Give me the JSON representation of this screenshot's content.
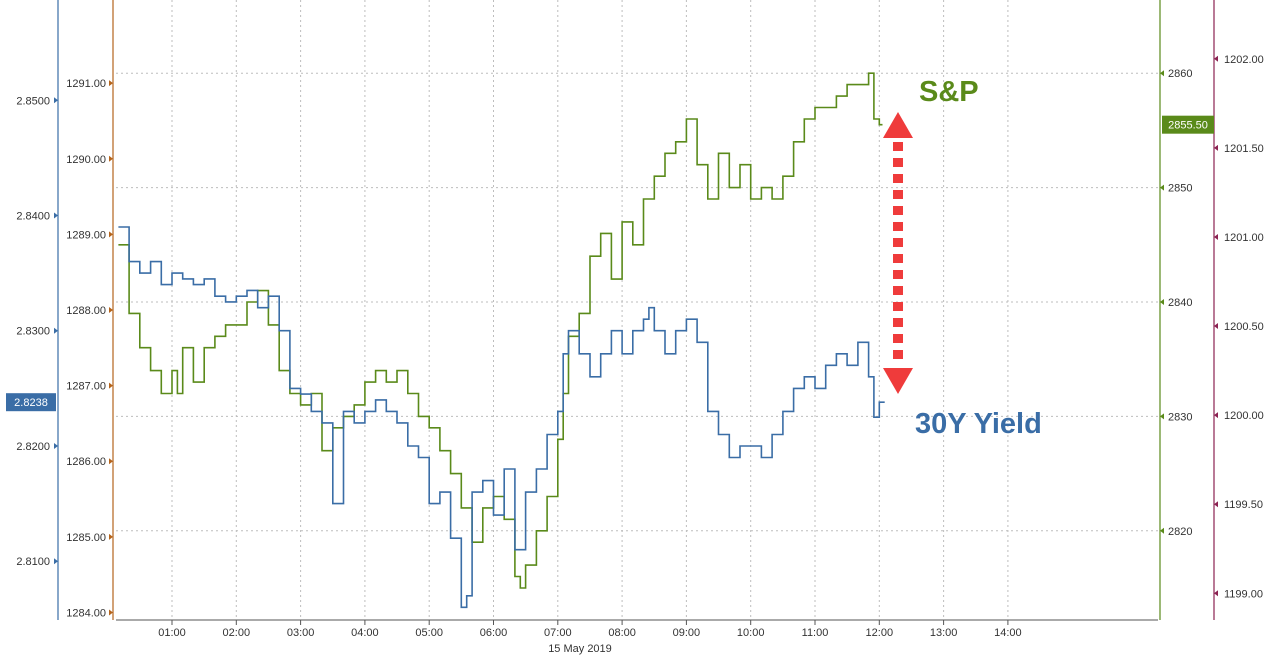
{
  "chart_data": {
    "type": "line",
    "date_label": "15 May 2019",
    "x_ticks": [
      "01:00",
      "02:00",
      "03:00",
      "04:00",
      "05:00",
      "06:00",
      "07:00",
      "08:00",
      "09:00",
      "10:00",
      "11:00",
      "12:00",
      "13:00",
      "14:00"
    ],
    "axes": {
      "yield_axis": {
        "ticks": [
          "2.8100",
          "2.8200",
          "2.8300",
          "2.8400",
          "2.8500"
        ],
        "range": [
          2.8049,
          2.8587
        ],
        "current_label": "2.8238",
        "color": "#3a6da6"
      },
      "left_inner": {
        "ticks": [
          "1284.00",
          "1285.00",
          "1286.00",
          "1287.00",
          "1288.00",
          "1289.00",
          "1290.00",
          "1291.00"
        ],
        "range": [
          1283.9,
          1292.1
        ],
        "color": "#b5651d"
      },
      "spx_axis": {
        "ticks": [
          "2820",
          "2830",
          "2840",
          "2850",
          "2860"
        ],
        "range": [
          2812.2,
          2866.4
        ],
        "current_label": "2855.50",
        "color": "#5a8a1a"
      },
      "right_outer": {
        "ticks": [
          "1199.00",
          "1199.50",
          "1200.00",
          "1200.50",
          "1201.00",
          "1201.50",
          "1202.00"
        ],
        "range": [
          1198.85,
          1202.33
        ],
        "color": "#8b2252"
      }
    },
    "series": [
      {
        "name": "S&P",
        "color": "#5a8a1a",
        "axis": "spx_axis",
        "x": [
          "00:10",
          "00:20",
          "00:30",
          "00:40",
          "00:50",
          "01:00",
          "01:05",
          "01:10",
          "01:20",
          "01:30",
          "01:40",
          "01:50",
          "02:00",
          "02:10",
          "02:20",
          "02:30",
          "02:40",
          "02:50",
          "03:00",
          "03:10",
          "03:20",
          "03:30",
          "03:40",
          "03:50",
          "04:00",
          "04:10",
          "04:20",
          "04:30",
          "04:40",
          "04:50",
          "05:00",
          "05:10",
          "05:20",
          "05:30",
          "05:40",
          "05:50",
          "06:00",
          "06:10",
          "06:20",
          "06:25",
          "06:30",
          "06:40",
          "06:50",
          "07:00",
          "07:05",
          "07:10",
          "07:20",
          "07:30",
          "07:40",
          "07:50",
          "08:00",
          "08:10",
          "08:20",
          "08:30",
          "08:40",
          "08:50",
          "09:00",
          "09:10",
          "09:20",
          "09:30",
          "09:40",
          "09:50",
          "10:00",
          "10:10",
          "10:20",
          "10:30",
          "10:40",
          "10:50",
          "11:00",
          "11:10",
          "11:20",
          "11:30",
          "11:40",
          "11:50",
          "11:55",
          "12:00",
          "12:03"
        ],
        "values": [
          2845,
          2839,
          2836,
          2834,
          2832,
          2834,
          2832,
          2836,
          2833,
          2836,
          2837,
          2838,
          2838,
          2840,
          2841,
          2838,
          2834,
          2832,
          2831,
          2832,
          2827,
          2829,
          2830,
          2831,
          2833,
          2834,
          2833,
          2834,
          2832,
          2830,
          2829,
          2827,
          2825,
          2822,
          2819,
          2822,
          2823,
          2821,
          2816,
          2815,
          2817,
          2820,
          2823,
          2828,
          2832,
          2837,
          2839,
          2844,
          2846,
          2842,
          2847,
          2845,
          2849,
          2851,
          2853,
          2854,
          2856,
          2852,
          2849,
          2853,
          2850,
          2852,
          2849,
          2850,
          2849,
          2851,
          2854,
          2856,
          2857,
          2857,
          2858,
          2859,
          2859,
          2860,
          2856,
          2855.5,
          2855.5
        ]
      },
      {
        "name": "30Y Yield",
        "color": "#3a6da6",
        "axis": "yield_axis",
        "x": [
          "00:10",
          "00:20",
          "00:30",
          "00:40",
          "00:50",
          "01:00",
          "01:10",
          "01:20",
          "01:30",
          "01:40",
          "01:50",
          "02:00",
          "02:10",
          "02:20",
          "02:30",
          "02:40",
          "02:50",
          "03:00",
          "03:10",
          "03:20",
          "03:30",
          "03:40",
          "03:50",
          "04:00",
          "04:10",
          "04:20",
          "04:30",
          "04:40",
          "04:50",
          "05:00",
          "05:10",
          "05:20",
          "05:30",
          "05:35",
          "05:40",
          "05:50",
          "06:00",
          "06:10",
          "06:20",
          "06:30",
          "06:40",
          "06:50",
          "07:00",
          "07:05",
          "07:10",
          "07:20",
          "07:30",
          "07:40",
          "07:50",
          "08:00",
          "08:10",
          "08:20",
          "08:25",
          "08:30",
          "08:40",
          "08:50",
          "09:00",
          "09:10",
          "09:20",
          "09:30",
          "09:40",
          "09:50",
          "10:00",
          "10:10",
          "10:20",
          "10:30",
          "10:40",
          "10:50",
          "11:00",
          "11:10",
          "11:20",
          "11:30",
          "11:40",
          "11:50",
          "11:55",
          "12:00",
          "12:05"
        ],
        "values": [
          2.839,
          2.836,
          2.835,
          2.836,
          2.834,
          2.835,
          2.8345,
          2.834,
          2.8345,
          2.833,
          2.8325,
          2.833,
          2.8335,
          2.832,
          2.833,
          2.83,
          2.825,
          2.8245,
          2.823,
          2.822,
          2.815,
          2.823,
          2.822,
          2.823,
          2.824,
          2.823,
          2.822,
          2.82,
          2.819,
          2.815,
          2.816,
          2.812,
          2.806,
          2.807,
          2.816,
          2.817,
          2.814,
          2.818,
          2.811,
          2.816,
          2.818,
          2.821,
          2.823,
          2.828,
          2.83,
          2.828,
          2.826,
          2.828,
          2.83,
          2.828,
          2.83,
          2.831,
          2.832,
          2.83,
          2.828,
          2.83,
          2.831,
          2.829,
          2.823,
          2.821,
          2.819,
          2.82,
          2.82,
          2.819,
          2.821,
          2.823,
          2.825,
          2.826,
          2.825,
          2.827,
          2.828,
          2.827,
          2.829,
          2.826,
          2.8225,
          2.8238,
          2.8238
        ]
      }
    ],
    "annotations": {
      "spx_label": "S&P",
      "yield_label": "30Y Yield",
      "arrow_color": "#ef3b3b"
    },
    "grid": true
  }
}
